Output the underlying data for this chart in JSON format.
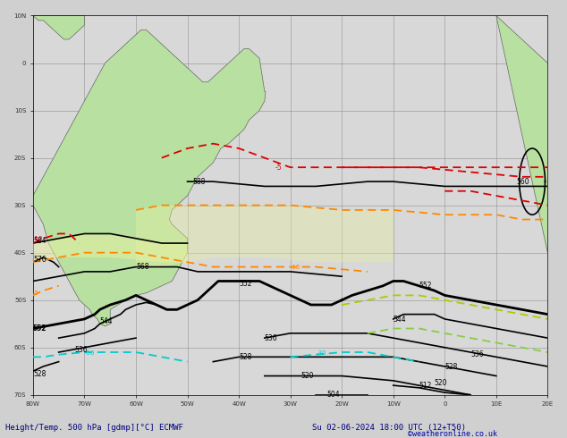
{
  "title_left": "Height/Temp. 500 hPa [gdmp][°C] ECMWF",
  "title_right": "Su 02-06-2024 18:00 UTC (12+T50)",
  "copyright": "©weatheronline.co.uk",
  "bg_ocean": "#d8d8d8",
  "bg_land": "#b8e0a0",
  "bg_land2": "#c8eab0",
  "grid_color": "#888888",
  "coast_color": "#666666",
  "label_color": "#000000",
  "bottom_text_color": "#000080",
  "copyright_color": "#0000aa",
  "figsize": [
    6.34,
    4.9
  ],
  "dpi": 100,
  "lon_min": -80,
  "lon_max": 20,
  "lat_min": -70,
  "lat_max": 10,
  "contour_colors_black": "#000000",
  "contour_color_red": "#dd0000",
  "contour_color_orange": "#ff8800",
  "contour_color_cyan": "#00cccc",
  "contour_color_yellow_green": "#aacc00",
  "contour_color_light_green": "#88cc44"
}
